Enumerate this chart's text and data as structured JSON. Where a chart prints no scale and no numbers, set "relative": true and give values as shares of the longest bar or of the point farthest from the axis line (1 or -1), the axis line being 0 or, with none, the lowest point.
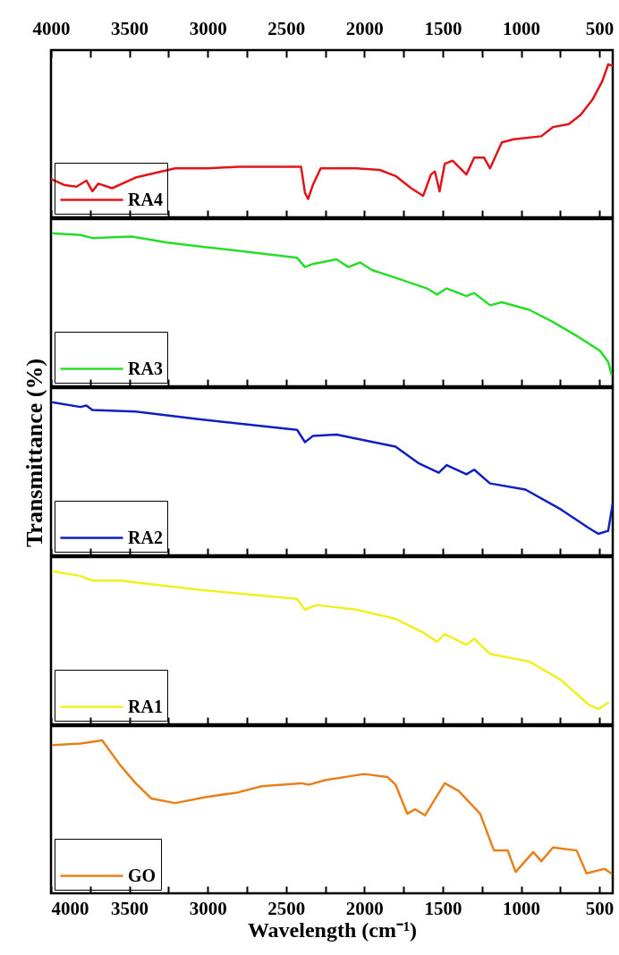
{
  "chart_data": [
    {
      "type": "line",
      "relative": true,
      "legend": "bottom left",
      "tick_labels": false,
      "xlim": [
        4000,
        415
      ],
      "xticks": [
        4000,
        {
          "value": 3750,
          "label": null
        },
        3500,
        {
          "value": 3250,
          "label": null
        },
        3000,
        {
          "value": 2750,
          "label": null
        },
        2500,
        {
          "value": 2250,
          "label": null
        },
        2000,
        {
          "value": 1750,
          "label": null
        },
        1500,
        {
          "value": 1250,
          "label": null
        },
        1000,
        {
          "value": 750,
          "label": null
        },
        500
      ],
      "x2lim": [
        4000,
        415
      ],
      "x2ticks": [
        4000,
        {
          "value": 3750,
          "label": null
        },
        3500,
        {
          "value": 3250,
          "label": null
        },
        3000,
        {
          "value": 2750,
          "label": null
        },
        2500,
        {
          "value": 2250,
          "label": null
        },
        2000,
        {
          "value": 1750,
          "label": null
        },
        1500,
        {
          "value": 1250,
          "label": null
        },
        1000,
        {
          "value": 750,
          "label": null
        },
        500
      ],
      "x": [
        4000,
        3912,
        3837,
        3774,
        3736,
        3698,
        3610,
        3460,
        3208,
        3007,
        2806,
        2404,
        2379,
        2359,
        2329,
        2279,
        2053,
        1902,
        1801,
        1701,
        1625,
        1575,
        1550,
        1520,
        1487,
        1437,
        1349,
        1299,
        1236,
        1198,
        1123,
        1047,
        871,
        796,
        695,
        620,
        544,
        482,
        444,
        415
      ],
      "series": [
        {
          "name": "RA4",
          "color": "#e0141a",
          "values": [
            0.25,
            0.21,
            0.2,
            0.24,
            0.17,
            0.22,
            0.19,
            0.26,
            0.32,
            0.32,
            0.33,
            0.33,
            0.16,
            0.12,
            0.21,
            0.32,
            0.32,
            0.31,
            0.27,
            0.19,
            0.14,
            0.28,
            0.3,
            0.17,
            0.35,
            0.37,
            0.28,
            0.39,
            0.39,
            0.32,
            0.49,
            0.51,
            0.53,
            0.59,
            0.61,
            0.67,
            0.77,
            0.89,
            1,
            0.99
          ]
        }
      ]
    },
    {
      "type": "line",
      "relative": true,
      "legend": "bottom left",
      "tick_labels": false,
      "xlim": [
        4000,
        415
      ],
      "xticks": [
        4000,
        {
          "value": 3750,
          "label": null
        },
        3500,
        {
          "value": 3250,
          "label": null
        },
        3000,
        {
          "value": 2750,
          "label": null
        },
        2500,
        {
          "value": 2250,
          "label": null
        },
        2000,
        {
          "value": 1750,
          "label": null
        },
        1500,
        {
          "value": 1250,
          "label": null
        },
        1000,
        {
          "value": 750,
          "label": null
        },
        500
      ],
      "x": [
        3987,
        3812,
        3736,
        3485,
        3259,
        3007,
        2756,
        2429,
        2379,
        2329,
        2178,
        2103,
        2027,
        1952,
        1801,
        1600,
        1537,
        1475,
        1349,
        1299,
        1198,
        1123,
        947,
        796,
        645,
        494,
        444,
        424
      ],
      "series": [
        {
          "name": "RA3",
          "color": "#2adc2a",
          "values": [
            1,
            0.99,
            0.97,
            0.98,
            0.94,
            0.91,
            0.88,
            0.84,
            0.78,
            0.8,
            0.83,
            0.78,
            0.81,
            0.76,
            0.71,
            0.64,
            0.6,
            0.64,
            0.59,
            0.61,
            0.53,
            0.55,
            0.5,
            0.42,
            0.33,
            0.23,
            0.16,
            0.08
          ]
        }
      ]
    },
    {
      "type": "line",
      "relative": true,
      "legend": "bottom left",
      "tick_labels": false,
      "ylabel": "Transmittance (%)",
      "xlim": [
        4000,
        415
      ],
      "xticks": [
        4000,
        {
          "value": 3750,
          "label": null
        },
        3500,
        {
          "value": 3250,
          "label": null
        },
        3000,
        {
          "value": 2750,
          "label": null
        },
        2500,
        {
          "value": 2250,
          "label": null
        },
        2000,
        {
          "value": 1750,
          "label": null
        },
        1500,
        {
          "value": 1250,
          "label": null
        },
        1000,
        {
          "value": 750,
          "label": null
        },
        500
      ],
      "x": [
        3987,
        3812,
        3774,
        3736,
        3460,
        3058,
        2429,
        2379,
        2329,
        2178,
        1801,
        1650,
        1525,
        1475,
        1349,
        1299,
        1198,
        972,
        746,
        570,
        507,
        444,
        415
      ],
      "series": [
        {
          "name": "RA2",
          "color": "#1020c0",
          "values": [
            1,
            0.97,
            0.98,
            0.95,
            0.94,
            0.89,
            0.82,
            0.74,
            0.78,
            0.79,
            0.71,
            0.6,
            0.54,
            0.59,
            0.53,
            0.56,
            0.47,
            0.43,
            0.3,
            0.18,
            0.14,
            0.16,
            0.34
          ]
        }
      ]
    },
    {
      "type": "line",
      "relative": true,
      "legend": "bottom left",
      "tick_labels": false,
      "xlim": [
        4000,
        415
      ],
      "xticks": [
        4000,
        {
          "value": 3750,
          "label": null
        },
        3500,
        {
          "value": 3250,
          "label": null
        },
        3000,
        {
          "value": 2750,
          "label": null
        },
        2500,
        {
          "value": 2250,
          "label": null
        },
        2000,
        {
          "value": 1750,
          "label": null
        },
        1500,
        {
          "value": 1250,
          "label": null
        },
        1000,
        {
          "value": 750,
          "label": null
        },
        500
      ],
      "x": [
        3987,
        3812,
        3736,
        3560,
        3058,
        2429,
        2379,
        2304,
        2053,
        1801,
        1625,
        1537,
        1487,
        1349,
        1299,
        1198,
        947,
        746,
        570,
        507,
        444
      ],
      "series": [
        {
          "name": "RA1",
          "color": "#f0f020",
          "values": [
            1,
            0.97,
            0.94,
            0.94,
            0.88,
            0.82,
            0.75,
            0.78,
            0.75,
            0.69,
            0.6,
            0.54,
            0.59,
            0.52,
            0.56,
            0.46,
            0.41,
            0.29,
            0.13,
            0.1,
            0.14
          ]
        }
      ]
    },
    {
      "type": "line",
      "relative": true,
      "legend": "bottom left",
      "tick_labels": "x",
      "xlabel": "Wavelength (cm⁻¹)",
      "xlim": [
        4000,
        415
      ],
      "xticks": [
        4000,
        {
          "value": 3750,
          "label": null
        },
        3500,
        {
          "value": 3250,
          "label": null
        },
        3000,
        {
          "value": 2750,
          "label": null
        },
        2500,
        {
          "value": 2250,
          "label": null
        },
        2000,
        {
          "value": 1750,
          "label": null
        },
        1500,
        {
          "value": 1250,
          "label": null
        },
        1000,
        {
          "value": 750,
          "label": null
        },
        500
      ],
      "x": [
        3987,
        3812,
        3673,
        3560,
        3460,
        3359,
        3208,
        3007,
        2806,
        2656,
        2404,
        2354,
        2253,
        2002,
        1851,
        1801,
        1726,
        1676,
        1613,
        1487,
        1399,
        1261,
        1173,
        1085,
        1035,
        922,
        871,
        796,
        645,
        582,
        469,
        424
      ],
      "series": [
        {
          "name": "GO",
          "color": "#e8801c",
          "values": [
            0.97,
            0.98,
            1,
            0.84,
            0.72,
            0.62,
            0.59,
            0.63,
            0.66,
            0.7,
            0.72,
            0.71,
            0.74,
            0.78,
            0.76,
            0.71,
            0.52,
            0.55,
            0.51,
            0.72,
            0.67,
            0.52,
            0.28,
            0.28,
            0.14,
            0.27,
            0.21,
            0.3,
            0.28,
            0.13,
            0.16,
            0.13
          ]
        }
      ]
    }
  ]
}
